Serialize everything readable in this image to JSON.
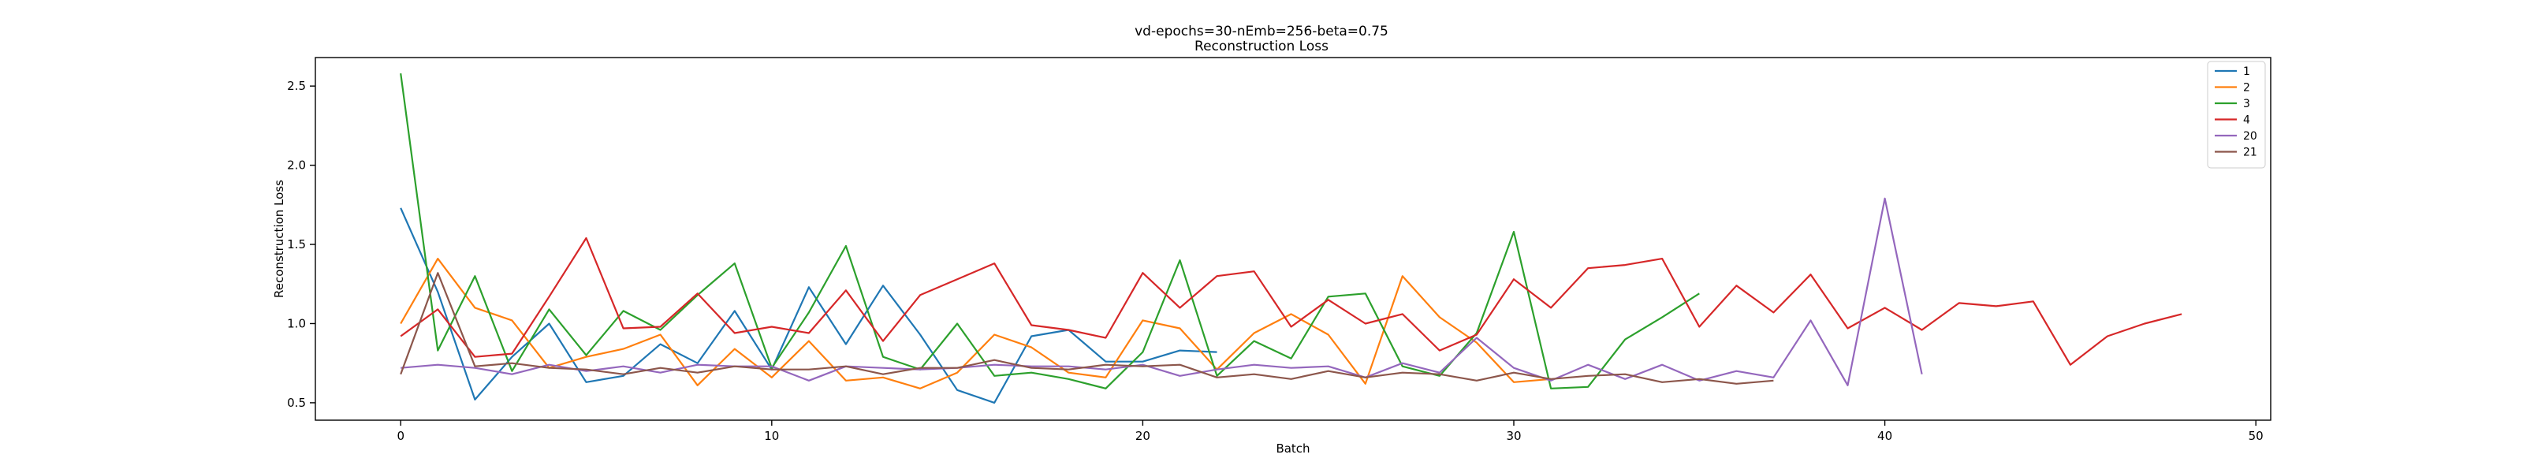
{
  "chart_data": {
    "type": "line",
    "title_line1": "vd-epochs=30-nEmb=256-beta=0.75",
    "title_line2": "Reconstruction Loss",
    "xlabel": "Batch",
    "ylabel": "Reconstruction Loss",
    "xlim": [
      -2.3,
      50.4
    ],
    "ylim": [
      0.39,
      2.68
    ],
    "xticks": [
      0,
      10,
      20,
      30,
      40,
      50
    ],
    "yticks": [
      0.5,
      1.0,
      1.5,
      2.0,
      2.5
    ],
    "xtick_labels": [
      "0",
      "10",
      "20",
      "30",
      "40",
      "50"
    ],
    "ytick_labels": [
      "0.5",
      "1.0",
      "1.5",
      "2.0",
      "2.5"
    ],
    "grid": false,
    "legend_position": "top-right",
    "series": [
      {
        "name": "1",
        "color": "#1f77b4",
        "x": [
          0,
          1,
          2,
          3,
          4,
          5,
          6,
          7,
          8,
          9,
          10,
          11,
          12,
          13,
          14,
          15,
          16,
          17,
          18,
          19,
          20,
          21,
          22
        ],
        "y": [
          1.73,
          1.2,
          0.52,
          0.79,
          1.0,
          0.63,
          0.67,
          0.87,
          0.75,
          1.08,
          0.71,
          1.23,
          0.87,
          1.24,
          0.93,
          0.58,
          0.5,
          0.92,
          0.96,
          0.76,
          0.76,
          0.83,
          0.82
        ]
      },
      {
        "name": "2",
        "color": "#ff7f0e",
        "x": [
          0,
          1,
          2,
          3,
          4,
          5,
          6,
          7,
          8,
          9,
          10,
          11,
          12,
          13,
          14,
          15,
          16,
          17,
          18,
          19,
          20,
          21,
          22,
          23,
          24,
          25,
          26,
          27,
          28,
          29,
          30,
          31
        ],
        "y": [
          1.0,
          1.41,
          1.1,
          1.02,
          0.72,
          0.79,
          0.84,
          0.93,
          0.61,
          0.84,
          0.66,
          0.89,
          0.64,
          0.66,
          0.59,
          0.69,
          0.93,
          0.85,
          0.69,
          0.66,
          1.02,
          0.97,
          0.71,
          0.94,
          1.06,
          0.93,
          0.62,
          1.3,
          1.04,
          0.88,
          0.63,
          0.65
        ]
      },
      {
        "name": "3",
        "color": "#2ca02c",
        "x": [
          0,
          1,
          2,
          3,
          4,
          5,
          6,
          7,
          8,
          9,
          10,
          11,
          12,
          13,
          14,
          15,
          16,
          17,
          18,
          19,
          20,
          21,
          22,
          23,
          24,
          25,
          26,
          27,
          28,
          29,
          30,
          31,
          32,
          33,
          34,
          35
        ],
        "y": [
          2.58,
          0.83,
          1.3,
          0.7,
          1.09,
          0.8,
          1.08,
          0.96,
          1.18,
          1.38,
          0.72,
          1.07,
          1.49,
          0.79,
          0.71,
          1.0,
          0.67,
          0.69,
          0.65,
          0.59,
          0.82,
          1.4,
          0.67,
          0.89,
          0.78,
          1.17,
          1.19,
          0.73,
          0.67,
          0.94,
          1.58,
          0.59,
          0.6,
          0.9,
          1.04,
          1.19
        ]
      },
      {
        "name": "4",
        "color": "#d62728",
        "x": [
          0,
          1,
          2,
          3,
          4,
          5,
          6,
          7,
          8,
          9,
          10,
          11,
          12,
          13,
          14,
          15,
          16,
          17,
          18,
          19,
          20,
          21,
          22,
          23,
          24,
          25,
          26,
          27,
          28,
          29,
          30,
          31,
          32,
          33,
          34,
          35,
          36,
          37,
          38,
          39,
          40,
          41,
          42,
          43,
          44,
          45,
          46,
          47,
          48
        ],
        "y": [
          0.92,
          1.09,
          0.79,
          0.81,
          1.17,
          1.54,
          0.97,
          0.98,
          1.19,
          0.94,
          0.98,
          0.94,
          1.21,
          0.89,
          1.18,
          1.28,
          1.38,
          0.99,
          0.96,
          0.91,
          1.32,
          1.1,
          1.3,
          1.33,
          0.98,
          1.15,
          1.0,
          1.06,
          0.83,
          0.93,
          1.28,
          1.1,
          1.35,
          1.37,
          1.41,
          0.98,
          1.24,
          1.07,
          1.31,
          0.97,
          1.1,
          0.96,
          1.13,
          1.11,
          1.14,
          0.74,
          0.92,
          1.0,
          1.06
        ]
      },
      {
        "name": "20",
        "color": "#9467bd",
        "x": [
          0,
          1,
          2,
          3,
          4,
          5,
          6,
          7,
          8,
          9,
          10,
          11,
          12,
          13,
          14,
          15,
          16,
          17,
          18,
          19,
          20,
          21,
          22,
          23,
          24,
          25,
          26,
          27,
          28,
          29,
          30,
          31,
          32,
          33,
          34,
          35,
          36,
          37,
          38,
          39,
          40,
          41
        ],
        "y": [
          0.72,
          0.74,
          0.72,
          0.68,
          0.74,
          0.7,
          0.73,
          0.69,
          0.74,
          0.73,
          0.73,
          0.64,
          0.73,
          0.72,
          0.71,
          0.72,
          0.74,
          0.73,
          0.73,
          0.71,
          0.74,
          0.67,
          0.71,
          0.74,
          0.72,
          0.73,
          0.66,
          0.75,
          0.69,
          0.91,
          0.72,
          0.64,
          0.74,
          0.65,
          0.74,
          0.64,
          0.7,
          0.66,
          1.02,
          0.61,
          1.79,
          0.68
        ]
      },
      {
        "name": "21",
        "color": "#8c564b",
        "x": [
          0,
          1,
          2,
          3,
          4,
          5,
          6,
          7,
          8,
          9,
          10,
          11,
          12,
          13,
          14,
          15,
          16,
          17,
          18,
          19,
          20,
          21,
          22,
          23,
          24,
          25,
          26,
          27,
          28,
          29,
          30,
          31,
          32,
          33,
          34,
          35,
          36,
          37
        ],
        "y": [
          0.68,
          1.32,
          0.73,
          0.75,
          0.72,
          0.71,
          0.68,
          0.72,
          0.69,
          0.73,
          0.71,
          0.71,
          0.73,
          0.68,
          0.72,
          0.72,
          0.77,
          0.72,
          0.71,
          0.74,
          0.73,
          0.74,
          0.66,
          0.68,
          0.65,
          0.7,
          0.66,
          0.69,
          0.68,
          0.64,
          0.69,
          0.65,
          0.67,
          0.68,
          0.63,
          0.65,
          0.62,
          0.64
        ]
      }
    ]
  }
}
